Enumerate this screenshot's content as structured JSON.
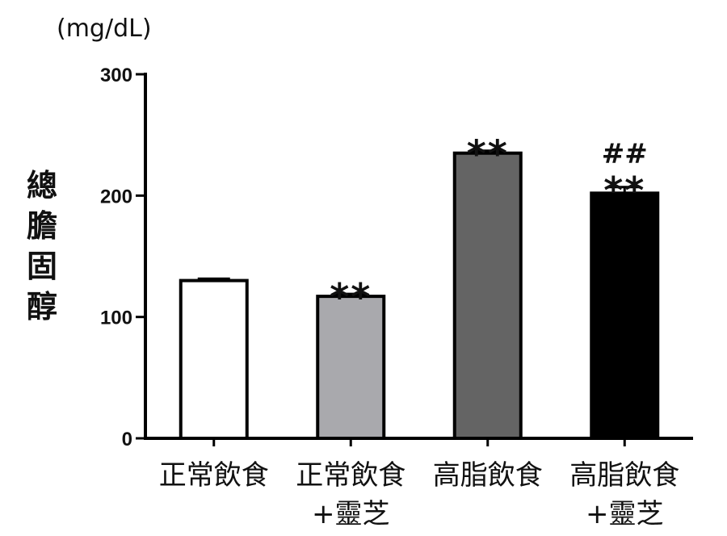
{
  "chart_data": {
    "type": "bar",
    "unit": "(mg/dL)",
    "ylabel": "總膽固醇",
    "ylim": [
      0,
      300
    ],
    "yticks": [
      0,
      100,
      200,
      300
    ],
    "categories": [
      [
        "正常飲食"
      ],
      [
        "正常飲食",
        "+靈芝"
      ],
      [
        "高脂飲食"
      ],
      [
        "高脂飲食",
        "+靈芝"
      ]
    ],
    "values": [
      130,
      117,
      235,
      202
    ],
    "errors": [
      1.5,
      2,
      2,
      5
    ],
    "significance": [
      [],
      [
        "**"
      ],
      [
        "**"
      ],
      [
        "##",
        "**"
      ]
    ],
    "colors": [
      "#ffffff",
      "#a9a9ad",
      "#646464",
      "#000000"
    ],
    "grid": false
  }
}
